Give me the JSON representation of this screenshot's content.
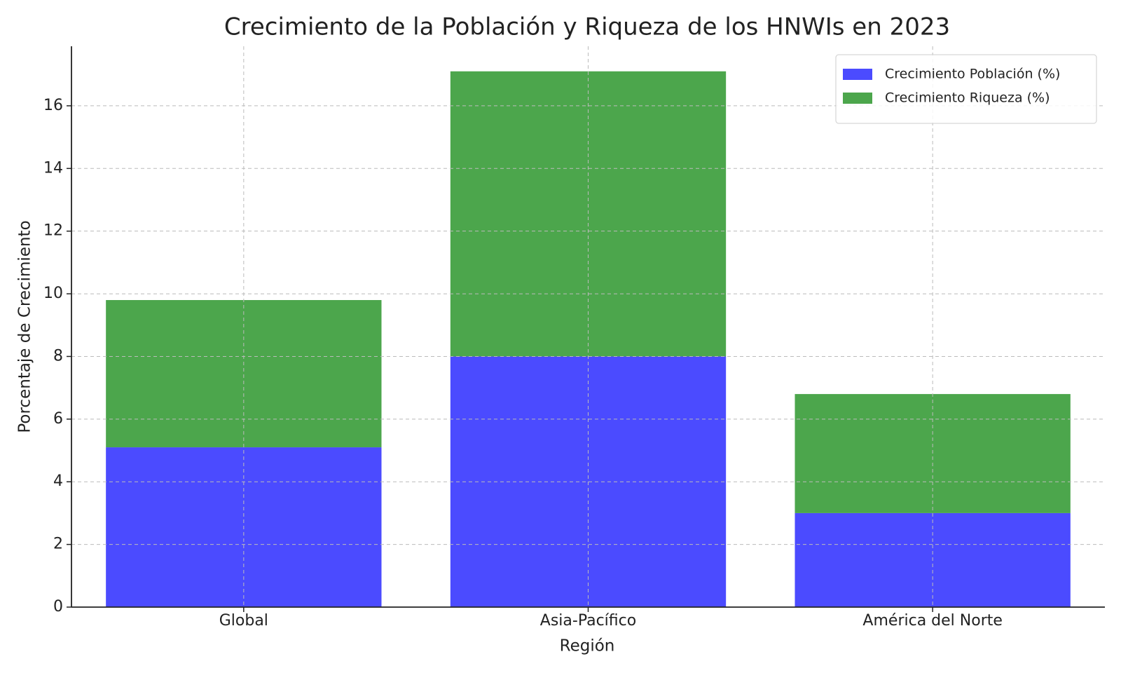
{
  "chart_data": {
    "type": "stacked_bar",
    "title": "Crecimiento de la Población y Riqueza de los HNWIs en 2023",
    "x_label": "Región",
    "y_label": "Porcentaje de Crecimiento",
    "categories": [
      "Global",
      "Asia-Pacífico",
      "América del Norte"
    ],
    "series": [
      {
        "name": "Crecimiento Población (%)",
        "color": "#4b4bff",
        "values": [
          5.1,
          8.0,
          3.0
        ]
      },
      {
        "name": "Crecimiento Riqueza (%)",
        "color": "#4ca64c",
        "values": [
          4.7,
          9.1,
          3.8
        ]
      }
    ],
    "ylim": [
      0,
      17.9
    ],
    "yticks": [
      0,
      2,
      4,
      6,
      8,
      10,
      12,
      14,
      16
    ],
    "grid": true,
    "legend": "upper right"
  }
}
